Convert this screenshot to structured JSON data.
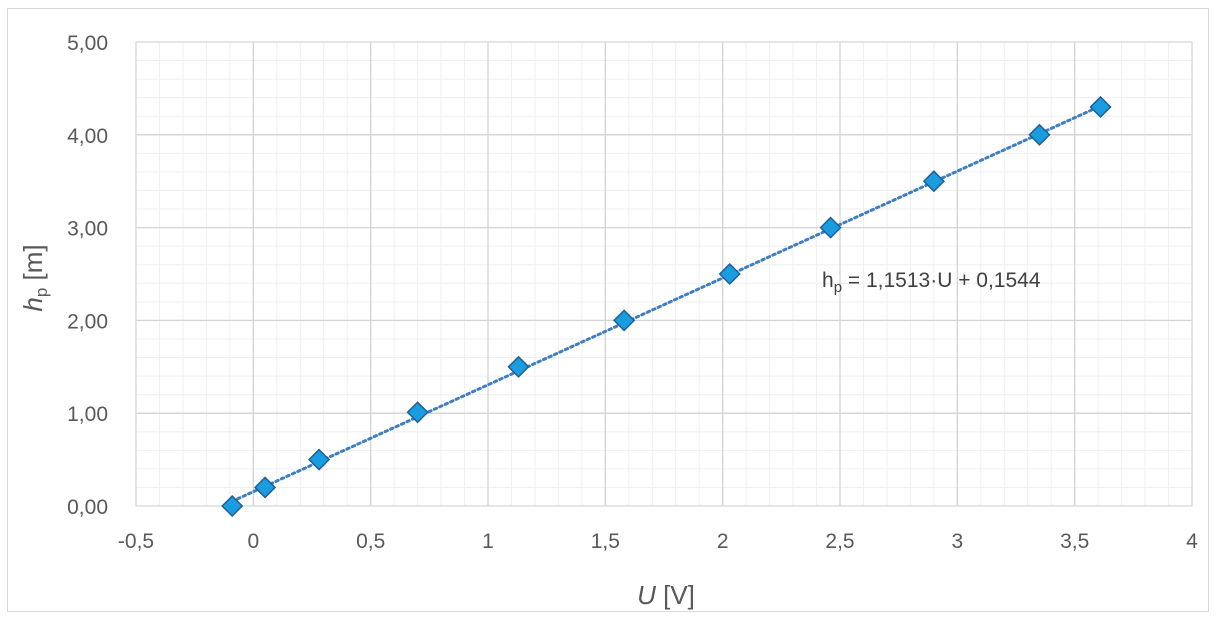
{
  "chart_data": {
    "type": "scatter",
    "x_axis": {
      "label_var": "U",
      "label_unit": " [V]",
      "range": [
        -0.5,
        4
      ],
      "major_step": 0.5,
      "minor_step": 0.1,
      "ticks": [
        -0.5,
        0,
        0.5,
        1,
        1.5,
        2,
        2.5,
        3,
        3.5,
        4
      ],
      "tick_labels": [
        "-0,5",
        "0",
        "0,5",
        "1",
        "1,5",
        "2",
        "2,5",
        "3",
        "3,5",
        "4"
      ]
    },
    "y_axis": {
      "label_var": "h",
      "label_sub": "p",
      "label_unit": " [m]",
      "range": [
        0,
        5
      ],
      "major_step": 1,
      "minor_step": 0.2,
      "ticks": [
        0,
        1,
        2,
        3,
        4,
        5
      ],
      "tick_labels": [
        "0,00",
        "1,00",
        "2,00",
        "3,00",
        "4,00",
        "5,00"
      ]
    },
    "grid": true,
    "series": [
      {
        "marker": "diamond",
        "color": "#1a9de0",
        "edge_color": "#1f5f94",
        "x": [
          -0.09,
          0.05,
          0.28,
          0.7,
          1.13,
          1.58,
          2.03,
          2.46,
          2.9,
          3.35,
          3.61
        ],
        "y": [
          0.0,
          0.2,
          0.5,
          1.01,
          1.5,
          2.0,
          2.5,
          3.0,
          3.5,
          4.0,
          4.3
        ]
      }
    ],
    "trendline": {
      "style": "dotted",
      "color": "#3f7ec0",
      "slope": 1.1513,
      "intercept": 0.1544,
      "x_range": [
        -0.09,
        3.61
      ],
      "equation": {
        "lhs": "h",
        "lhs_sub": "p",
        "rhs": " = 1,1513·U + 0,1544"
      }
    }
  }
}
